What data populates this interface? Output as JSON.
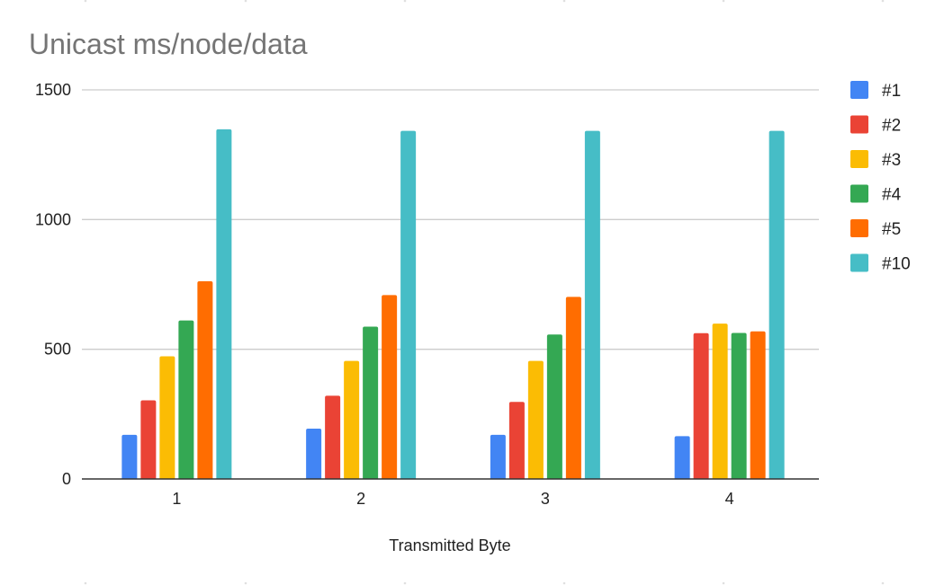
{
  "chart_data": {
    "type": "bar",
    "title": "Unicast ms/node/data",
    "xlabel": "Transmitted Byte",
    "ylabel": "",
    "categories": [
      "1",
      "2",
      "3",
      "4"
    ],
    "ylim": [
      0,
      1500
    ],
    "yticks": [
      0,
      500,
      1000,
      1500
    ],
    "grid": true,
    "legend_position": "right",
    "series": [
      {
        "name": "#1",
        "color": "#4285f4",
        "values": [
          170,
          194,
          170,
          165
        ]
      },
      {
        "name": "#2",
        "color": "#ea4335",
        "values": [
          303,
          321,
          297,
          562
        ]
      },
      {
        "name": "#3",
        "color": "#fbbc04",
        "values": [
          473,
          455,
          455,
          599
        ]
      },
      {
        "name": "#4",
        "color": "#34a853",
        "values": [
          611,
          587,
          557,
          563
        ]
      },
      {
        "name": "#5",
        "color": "#ff6d01",
        "values": [
          762,
          709,
          702,
          569
        ]
      },
      {
        "name": "#10",
        "color": "#46bdc6",
        "values": [
          1348,
          1342,
          1342,
          1342
        ]
      }
    ]
  }
}
